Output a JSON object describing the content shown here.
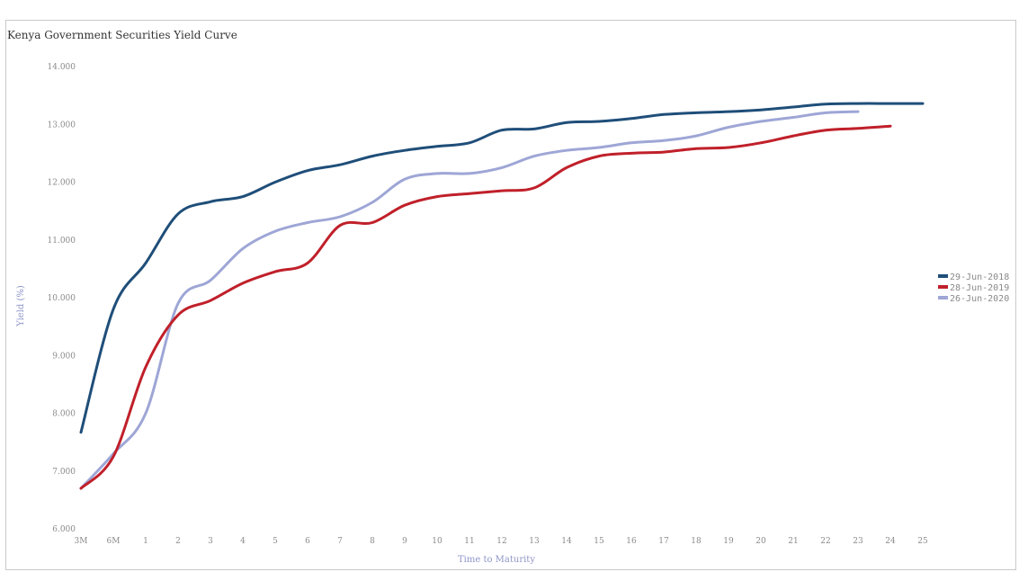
{
  "chart_data": {
    "type": "line",
    "title": "Kenya Government Securities Yield Curve",
    "xlabel": "Time to Maturity",
    "ylabel": "Yield (%)",
    "ylim": [
      6.0,
      14.0
    ],
    "y_ticks": [
      "6.000",
      "7.000",
      "8.000",
      "9.000",
      "10.000",
      "11.000",
      "12.000",
      "13.000",
      "14.000"
    ],
    "categories": [
      "3M",
      "6M",
      "1",
      "2",
      "3",
      "4",
      "5",
      "6",
      "7",
      "8",
      "9",
      "10",
      "11",
      "12",
      "13",
      "14",
      "15",
      "16",
      "17",
      "18",
      "19",
      "20",
      "21",
      "22",
      "23",
      "24",
      "25"
    ],
    "legend_position": "right",
    "grid": false,
    "series": [
      {
        "name": "29-Jun-2018",
        "color": "#1f4e79",
        "values": [
          7.67,
          9.8,
          10.6,
          11.45,
          11.66,
          11.75,
          12.0,
          12.2,
          12.3,
          12.45,
          12.55,
          12.62,
          12.68,
          12.9,
          12.92,
          13.03,
          13.05,
          13.1,
          13.17,
          13.2,
          13.22,
          13.25,
          13.3,
          13.35,
          13.36,
          13.36,
          13.36
        ]
      },
      {
        "name": "28-Jun-2019",
        "color": "#c0202a",
        "values": [
          6.7,
          7.25,
          8.8,
          9.7,
          9.95,
          10.25,
          10.45,
          10.6,
          11.25,
          11.3,
          11.6,
          11.75,
          11.8,
          11.85,
          11.9,
          12.25,
          12.45,
          12.5,
          12.52,
          12.58,
          12.6,
          12.68,
          12.8,
          12.9,
          12.93,
          12.97,
          null
        ]
      },
      {
        "name": "26-Jun-2020",
        "color": "#9ea6d6",
        "values": [
          6.7,
          7.3,
          8.0,
          9.9,
          10.3,
          10.85,
          11.15,
          11.3,
          11.4,
          11.65,
          12.05,
          12.15,
          12.15,
          12.25,
          12.45,
          12.55,
          12.6,
          12.68,
          12.72,
          12.8,
          12.95,
          13.05,
          13.12,
          13.2,
          13.22,
          null,
          null
        ]
      }
    ]
  }
}
